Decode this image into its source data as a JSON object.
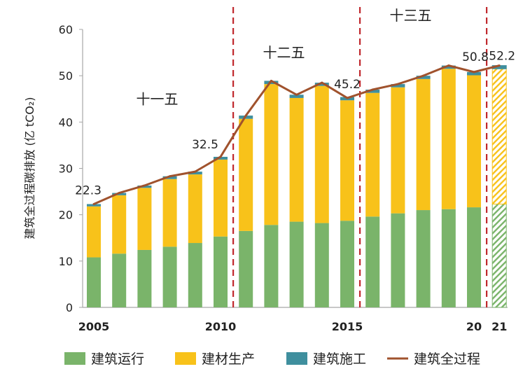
{
  "chart_data": {
    "type": "bar",
    "ylabel": "建筑全过程碳排放 (亿 tCO₂)",
    "ylim": [
      0,
      60
    ],
    "yticks": [
      0,
      10,
      20,
      30,
      40,
      50,
      60
    ],
    "categories": [
      "2005",
      "2006",
      "2007",
      "2008",
      "2009",
      "2010",
      "2011",
      "2012",
      "2013",
      "2014",
      "2015",
      "2016",
      "2017",
      "2018",
      "2019",
      "2020",
      "2021"
    ],
    "xtick_labels": [
      {
        "index": 0,
        "label": "2005"
      },
      {
        "index": 5,
        "label": "2010"
      },
      {
        "index": 10,
        "label": "2015"
      },
      {
        "index": 15,
        "label": "20"
      },
      {
        "index": 16,
        "label": "21"
      }
    ],
    "series": [
      {
        "name": "建筑运行",
        "values": [
          10.8,
          11.6,
          12.4,
          13.1,
          13.9,
          15.3,
          16.5,
          17.8,
          18.5,
          18.2,
          18.7,
          19.6,
          20.3,
          21.0,
          21.2,
          21.6,
          22.3
        ]
      },
      {
        "name": "建材生产",
        "values": [
          11.0,
          12.6,
          13.4,
          14.6,
          14.8,
          16.6,
          24.2,
          30.4,
          26.7,
          29.6,
          26.0,
          26.7,
          27.2,
          28.3,
          30.3,
          28.5,
          29.2
        ]
      },
      {
        "name": "建筑施工",
        "values": [
          0.5,
          0.5,
          0.5,
          0.6,
          0.6,
          0.6,
          0.7,
          0.7,
          0.7,
          0.7,
          0.7,
          0.7,
          0.7,
          0.7,
          0.7,
          0.7,
          0.7
        ]
      }
    ],
    "line": {
      "name": "建筑全过程",
      "values": [
        22.3,
        24.7,
        26.3,
        28.3,
        29.3,
        32.5,
        41.4,
        48.9,
        45.9,
        48.5,
        45.2,
        47.0,
        48.2,
        50.0,
        52.2,
        50.8,
        52.2
      ]
    },
    "projected_index": 16,
    "data_labels": [
      {
        "index": 0,
        "label": "22.3"
      },
      {
        "index": 5,
        "label": "32.5"
      },
      {
        "index": 10,
        "label": "45.2"
      },
      {
        "index": 15,
        "label": "50.8"
      },
      {
        "index": 16,
        "label": "52.2"
      }
    ],
    "period_dividers_after_index": [
      5,
      10,
      15
    ],
    "period_labels": [
      {
        "label": "十一五",
        "center_index": 2.5,
        "y": 45
      },
      {
        "label": "十二五",
        "center_index": 7.5,
        "y": 55
      },
      {
        "label": "十三五",
        "center_index": 12.5,
        "y": 63
      }
    ],
    "legend_position": "bottom",
    "grid": false,
    "colors": {
      "建筑运行": "#7ab46a",
      "建材生产": "#f8c21a",
      "建筑施工": "#3f8f9e",
      "建筑全过程": "#a0522d",
      "divider": "#c0282d",
      "axis": "#a6a6a6"
    }
  }
}
